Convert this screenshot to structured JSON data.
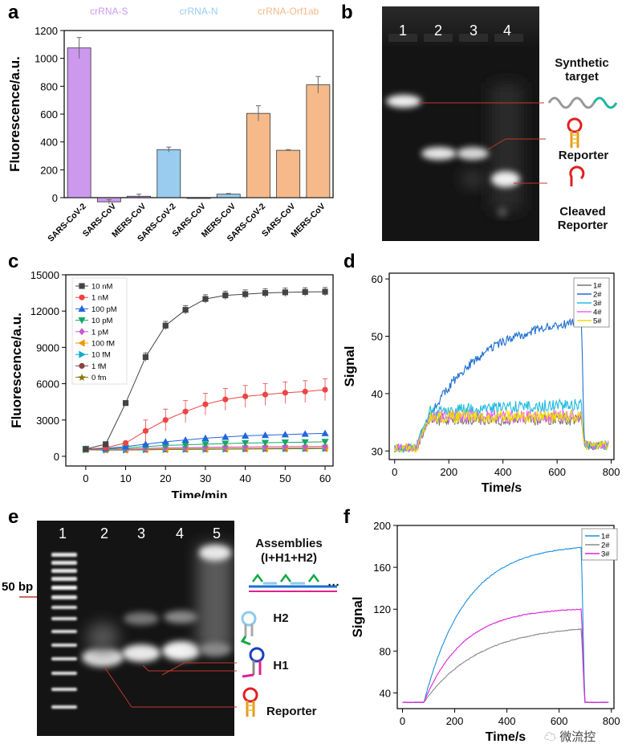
{
  "panels": {
    "a": "a",
    "b": "b",
    "c": "c",
    "d": "d",
    "e": "e",
    "f": "f"
  },
  "chart_a": {
    "type": "bar",
    "ylabel": "Fluorescence/a.u.",
    "ylim": [
      0,
      1200
    ],
    "yticks": [
      0,
      200,
      400,
      600,
      800,
      1000,
      1200
    ],
    "groups": [
      {
        "name": "crRNA-S",
        "color": "#cc99ee"
      },
      {
        "name": "crRNA-N",
        "color": "#99ccee"
      },
      {
        "name": "crRNA-Orf1ab",
        "color": "#f5b98a"
      }
    ],
    "categories": [
      "SARS-CoV-2",
      "SARS-CoV",
      "MERS-CoV",
      "SARS-CoV-2",
      "SARS-CoV",
      "MERS-CoV",
      "SARS-CoV-2",
      "SARS-CoV",
      "MERS-CoV"
    ],
    "values": [
      1075,
      -30,
      10,
      345,
      0,
      25,
      605,
      340,
      810
    ],
    "errors": [
      75,
      15,
      15,
      18,
      0,
      5,
      55,
      5,
      60
    ],
    "bar_colors": [
      "#cc99ee",
      "#cc99ee",
      "#cc99ee",
      "#99ccee",
      "#99ccee",
      "#99ccee",
      "#f5b98a",
      "#f5b98a",
      "#f5b98a"
    ]
  },
  "gel_b": {
    "lanes": [
      "1",
      "2",
      "3",
      "4"
    ],
    "labels": {
      "synthetic": "Synthetic target",
      "reporter": "Reporter",
      "cleaved": "Cleaved Reporter"
    }
  },
  "chart_c": {
    "type": "line",
    "xlabel": "Time/min",
    "ylabel": "Fluorescence/a.u.",
    "xlim": [
      -5,
      62
    ],
    "ylim": [
      -800,
      15000
    ],
    "xticks": [
      0,
      10,
      20,
      30,
      40,
      50,
      60
    ],
    "yticks": [
      0,
      3000,
      6000,
      9000,
      12000,
      15000
    ],
    "x": [
      0,
      5,
      10,
      15,
      20,
      25,
      30,
      35,
      40,
      45,
      50,
      55,
      60
    ],
    "series": [
      {
        "name": "10 nM",
        "color": "#444444",
        "marker": "square",
        "values": [
          600,
          1000,
          4400,
          8200,
          10800,
          12100,
          13000,
          13300,
          13400,
          13500,
          13550,
          13580,
          13600
        ]
      },
      {
        "name": "1 nM",
        "color": "#ee4444",
        "marker": "circle",
        "values": [
          600,
          700,
          1100,
          2100,
          3000,
          3700,
          4300,
          4700,
          4950,
          5100,
          5250,
          5350,
          5500
        ]
      },
      {
        "name": "100 pM",
        "color": "#2266dd",
        "marker": "triangle-up",
        "values": [
          600,
          650,
          800,
          1000,
          1200,
          1350,
          1500,
          1600,
          1700,
          1750,
          1800,
          1850,
          1900
        ]
      },
      {
        "name": "10 pM",
        "color": "#11aa66",
        "marker": "triangle-down",
        "values": [
          600,
          620,
          700,
          800,
          900,
          950,
          1000,
          1050,
          1100,
          1120,
          1150,
          1170,
          1200
        ]
      },
      {
        "name": "1 pM",
        "color": "#cc55cc",
        "marker": "diamond",
        "values": [
          600,
          600,
          620,
          650,
          700,
          720,
          740,
          760,
          780,
          790,
          800,
          810,
          820
        ]
      },
      {
        "name": "100 fM",
        "color": "#ee9900",
        "marker": "triangle-left",
        "values": [
          600,
          580,
          580,
          600,
          620,
          640,
          650,
          660,
          670,
          680,
          690,
          700,
          710
        ]
      },
      {
        "name": "10 fM",
        "color": "#11aacc",
        "marker": "triangle-right",
        "values": [
          580,
          560,
          560,
          580,
          600,
          610,
          620,
          630,
          640,
          650,
          660,
          670,
          680
        ]
      },
      {
        "name": "1 fM",
        "color": "#884444",
        "marker": "hexagon",
        "values": [
          560,
          540,
          540,
          560,
          580,
          590,
          600,
          610,
          620,
          630,
          640,
          650,
          660
        ]
      },
      {
        "name": "0 fm",
        "color": "#887700",
        "marker": "star",
        "values": [
          540,
          520,
          520,
          540,
          560,
          570,
          580,
          590,
          600,
          610,
          620,
          630,
          640
        ]
      }
    ]
  },
  "chart_d": {
    "type": "line",
    "xlabel": "Time/s",
    "ylabel": "Signal",
    "xlim": [
      -20,
      810
    ],
    "ylim": [
      28.5,
      61
    ],
    "xticks": [
      0,
      200,
      400,
      600,
      800
    ],
    "yticks": [
      30,
      40,
      50,
      60
    ],
    "series": [
      {
        "name": "1#",
        "color": "#777777"
      },
      {
        "name": "2#",
        "color": "#1f6fd0"
      },
      {
        "name": "3#",
        "color": "#22bbdd"
      },
      {
        "name": "4#",
        "color": "#ee66ee"
      },
      {
        "name": "5#",
        "color": "#eedd00"
      }
    ]
  },
  "gel_e": {
    "lanes": [
      "1",
      "2",
      "3",
      "4",
      "5"
    ],
    "marker": "50 bp",
    "labels": {
      "assemblies": "Assemblies",
      "assemblies_sub": "(I+H1+H2)",
      "h2": "H2",
      "h1": "H1",
      "reporter": "Reporter",
      "dots": "···"
    }
  },
  "chart_f": {
    "type": "line",
    "xlabel": "Time/s",
    "ylabel": "Signal",
    "xlim": [
      -20,
      810
    ],
    "ylim": [
      25,
      200
    ],
    "xticks": [
      0,
      200,
      400,
      600,
      800
    ],
    "yticks": [
      40,
      80,
      120,
      160,
      200
    ],
    "series": [
      {
        "name": "1#",
        "color": "#1a8fe0"
      },
      {
        "name": "2#",
        "color": "#888888"
      },
      {
        "name": "3#",
        "color": "#dd22dd"
      }
    ]
  },
  "watermark": "微流控"
}
